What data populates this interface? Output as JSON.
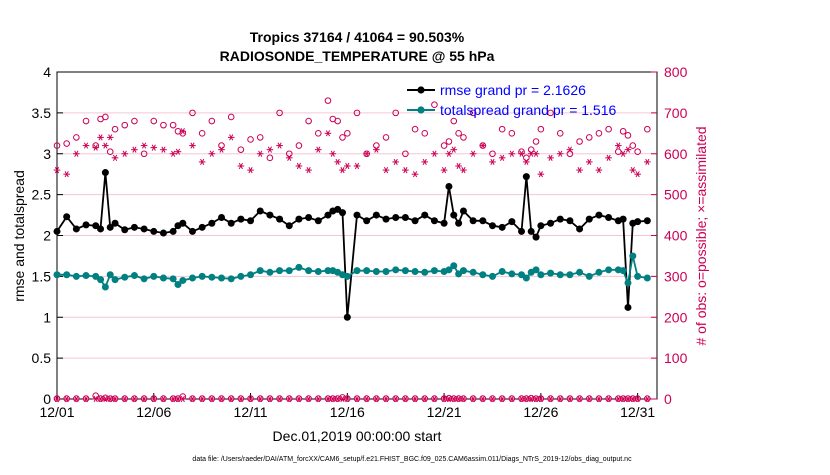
{
  "chart_data": {
    "type": "line",
    "title": [
      "Tropics 37164 / 41064 = 90.503%",
      "RADIOSONDE_TEMPERATURE @ 55 hPa"
    ],
    "xlabel": "Dec.01,2019 00:00:00 start",
    "ylabel": "rmse and totalspread",
    "ylabel_right": "# of obs: o=possible; ×=assimilated",
    "footnote": "data file: /Users/raeder/DAI/ATM_forcXX/CAM6_setup/f.e21.FHIST_BGC.f09_025.CAM6assim.011/Diags_NTrS_2019-12/obs_diag_output.nc",
    "x_ticks": [
      1,
      6,
      11,
      16,
      21,
      26,
      31
    ],
    "x_tick_labels": [
      "12/01",
      "12/06",
      "12/11",
      "12/16",
      "12/21",
      "12/26",
      "12/31"
    ],
    "xlim": [
      1,
      32
    ],
    "y_ticks": [
      0,
      0.5,
      1,
      1.5,
      2,
      2.5,
      3,
      3.5,
      4
    ],
    "y_tick_labels": [
      "0",
      "0.5",
      "1",
      "1.5",
      "2",
      "2.5",
      "3",
      "3.5",
      "4"
    ],
    "ylim": [
      0,
      4
    ],
    "y2_ticks": [
      0,
      100,
      200,
      300,
      400,
      500,
      600,
      700,
      800
    ],
    "y2_tick_labels": [
      "0",
      "100",
      "200",
      "300",
      "400",
      "500",
      "600",
      "700",
      "800"
    ],
    "y2lim": [
      0,
      800
    ],
    "legend": {
      "position": "top-right",
      "entries": [
        "rmse grand pr = 2.1626",
        "totalspread grand pr = 1.516"
      ]
    },
    "colors": {
      "rmse": "#000000",
      "spread": "#008080",
      "obs": "#cc0055",
      "legend_text": "#0000ff"
    },
    "series": [
      {
        "name": "rmse",
        "axis": "left",
        "x": [
          1,
          1.5,
          2,
          2.5,
          3,
          3.25,
          3.5,
          3.75,
          4,
          4.5,
          5,
          5.5,
          6,
          6.5,
          7,
          7.25,
          7.5,
          8,
          8.5,
          9,
          9.5,
          10,
          10.5,
          11,
          11.5,
          12,
          12.5,
          13,
          13.5,
          14,
          14.5,
          15,
          15.25,
          15.5,
          15.75,
          16,
          16.5,
          17,
          17.5,
          18,
          18.5,
          19,
          19.5,
          20,
          20.5,
          21,
          21.25,
          21.5,
          21.75,
          22,
          22.5,
          23,
          23.5,
          24,
          24.5,
          25,
          25.25,
          25.5,
          25.75,
          26,
          26.5,
          27,
          27.5,
          28,
          28.5,
          29,
          29.5,
          30,
          30.25,
          30.5,
          30.75,
          31,
          31.5
        ],
        "values": [
          2.05,
          2.23,
          2.08,
          2.13,
          2.12,
          2.08,
          2.77,
          2.1,
          2.15,
          2.07,
          2.1,
          2.08,
          2.05,
          2.03,
          2.05,
          2.12,
          2.15,
          2.05,
          2.1,
          2.15,
          2.22,
          2.15,
          2.2,
          2.18,
          2.3,
          2.25,
          2.2,
          2.12,
          2.2,
          2.22,
          2.18,
          2.25,
          2.3,
          2.32,
          2.28,
          1.0,
          2.25,
          2.18,
          2.25,
          2.2,
          2.22,
          2.22,
          2.18,
          2.25,
          2.18,
          2.15,
          2.6,
          2.25,
          2.15,
          2.3,
          2.18,
          2.18,
          2.12,
          2.1,
          2.17,
          2.05,
          2.72,
          2.05,
          1.98,
          2.12,
          2.15,
          2.2,
          2.18,
          2.08,
          2.2,
          2.25,
          2.22,
          2.18,
          2.2,
          1.12,
          2.15,
          2.17,
          2.18
        ]
      },
      {
        "name": "totalspread",
        "axis": "left",
        "x": [
          1,
          1.5,
          2,
          2.5,
          3,
          3.25,
          3.5,
          3.75,
          4,
          4.5,
          5,
          5.5,
          6,
          6.5,
          7,
          7.25,
          7.5,
          8,
          8.5,
          9,
          9.5,
          10,
          10.5,
          11,
          11.5,
          12,
          12.5,
          13,
          13.5,
          14,
          14.5,
          15,
          15.25,
          15.5,
          15.75,
          16,
          16.5,
          17,
          17.5,
          18,
          18.5,
          19,
          19.5,
          20,
          20.5,
          21,
          21.25,
          21.5,
          21.75,
          22,
          22.5,
          23,
          23.5,
          24,
          24.5,
          25,
          25.25,
          25.5,
          25.75,
          26,
          26.5,
          27,
          27.5,
          28,
          28.5,
          29,
          29.5,
          30,
          30.25,
          30.5,
          30.75,
          31,
          31.5
        ],
        "values": [
          1.52,
          1.52,
          1.5,
          1.51,
          1.5,
          1.46,
          1.37,
          1.52,
          1.46,
          1.49,
          1.51,
          1.47,
          1.5,
          1.48,
          1.47,
          1.4,
          1.45,
          1.48,
          1.5,
          1.49,
          1.48,
          1.47,
          1.5,
          1.52,
          1.57,
          1.55,
          1.57,
          1.57,
          1.61,
          1.57,
          1.56,
          1.57,
          1.57,
          1.55,
          1.52,
          1.5,
          1.57,
          1.57,
          1.56,
          1.56,
          1.58,
          1.57,
          1.56,
          1.55,
          1.57,
          1.56,
          1.58,
          1.63,
          1.53,
          1.57,
          1.55,
          1.52,
          1.5,
          1.56,
          1.53,
          1.52,
          1.48,
          1.55,
          1.58,
          1.52,
          1.54,
          1.52,
          1.52,
          1.55,
          1.5,
          1.55,
          1.58,
          1.58,
          1.57,
          1.42,
          1.75,
          1.5,
          1.48
        ]
      },
      {
        "name": "possible obs",
        "axis": "right",
        "marker": "circle",
        "x": [
          1,
          1.5,
          2,
          2.5,
          3,
          3.25,
          3.5,
          3.75,
          4,
          4.5,
          5,
          5.5,
          6,
          6.5,
          7,
          7.25,
          7.5,
          8,
          8.5,
          9,
          9.5,
          10,
          10.5,
          11,
          11.5,
          12,
          12.5,
          13,
          13.5,
          14,
          14.5,
          15,
          15.25,
          15.5,
          15.75,
          16,
          16.5,
          17,
          17.5,
          18,
          18.5,
          19,
          19.5,
          20,
          20.5,
          21,
          21.25,
          21.5,
          21.75,
          22,
          22.5,
          23,
          23.5,
          24,
          24.5,
          25,
          25.25,
          25.5,
          25.75,
          26,
          26.5,
          27,
          27.5,
          28,
          28.5,
          29,
          29.5,
          30,
          30.25,
          30.5,
          30.75,
          31,
          31.5
        ],
        "values": [
          620,
          625,
          640,
          680,
          620,
          685,
          690,
          605,
          660,
          670,
          680,
          600,
          680,
          670,
          670,
          655,
          650,
          700,
          650,
          680,
          620,
          690,
          610,
          635,
          640,
          590,
          700,
          600,
          620,
          680,
          650,
          730,
          685,
          680,
          640,
          650,
          700,
          600,
          620,
          640,
          700,
          600,
          660,
          650,
          720,
          620,
          630,
          680,
          650,
          640,
          700,
          620,
          600,
          660,
          650,
          605,
          590,
          610,
          630,
          660,
          700,
          650,
          600,
          630,
          640,
          650,
          660,
          605,
          655,
          645,
          620,
          605,
          660
        ]
      },
      {
        "name": "assimilated obs",
        "axis": "right",
        "marker": "asterisk",
        "x": [
          1,
          1.5,
          2,
          2.5,
          3,
          3.25,
          3.5,
          3.75,
          4,
          4.5,
          5,
          5.5,
          6,
          6.5,
          7,
          7.25,
          7.5,
          8,
          8.5,
          9,
          9.5,
          10,
          10.5,
          11,
          11.5,
          12,
          12.5,
          13,
          13.5,
          14,
          14.5,
          15,
          15.25,
          15.5,
          15.75,
          16,
          16.5,
          17,
          17.5,
          18,
          18.5,
          19,
          19.5,
          20,
          20.5,
          21,
          21.25,
          21.5,
          21.75,
          22,
          22.5,
          23,
          23.5,
          24,
          24.5,
          25,
          25.25,
          25.5,
          25.75,
          26,
          26.5,
          27,
          27.5,
          28,
          28.5,
          29,
          29.5,
          30,
          30.25,
          30.5,
          30.75,
          31,
          31.5
        ],
        "values": [
          560,
          550,
          600,
          620,
          615,
          640,
          620,
          640,
          590,
          600,
          610,
          620,
          615,
          610,
          600,
          605,
          655,
          620,
          580,
          600,
          610,
          640,
          570,
          560,
          600,
          610,
          620,
          590,
          570,
          560,
          610,
          650,
          600,
          580,
          560,
          570,
          570,
          600,
          610,
          560,
          580,
          560,
          550,
          580,
          600,
          560,
          600,
          610,
          570,
          560,
          600,
          620,
          580,
          590,
          600,
          600,
          580,
          600,
          600,
          550,
          590,
          600,
          610,
          560,
          580,
          560,
          590,
          620,
          600,
          610,
          560,
          550,
          580
        ]
      },
      {
        "name": "possible obs (bottom)",
        "axis": "right",
        "marker": "circle",
        "x": [
          1,
          1.5,
          2,
          2.5,
          3,
          3.25,
          3.5,
          3.75,
          4,
          4.5,
          5,
          5.5,
          6,
          6.5,
          7,
          7.25,
          7.5,
          8,
          8.5,
          9,
          9.5,
          10,
          10.5,
          11,
          11.5,
          12,
          12.5,
          13,
          13.5,
          14,
          14.5,
          15,
          15.25,
          15.5,
          15.75,
          16,
          16.5,
          17,
          17.5,
          18,
          18.5,
          19,
          19.5,
          20,
          20.5,
          21,
          21.25,
          21.5,
          21.75,
          22,
          22.5,
          23,
          23.5,
          24,
          24.5,
          25,
          25.25,
          25.5,
          25.75,
          26,
          26.5,
          27,
          27.5,
          28,
          28.5,
          29,
          29.5,
          30,
          30.25,
          30.5,
          30.75,
          31,
          31.5
        ],
        "values": [
          1,
          1,
          1,
          1,
          8,
          1,
          3,
          1,
          1,
          1,
          1,
          1,
          1,
          1,
          1,
          1,
          6,
          1,
          1,
          1,
          1,
          1,
          1,
          1,
          1,
          1,
          1,
          1,
          1,
          1,
          1,
          1,
          1,
          1,
          4,
          1,
          1,
          1,
          1,
          1,
          1,
          1,
          1,
          1,
          1,
          1,
          2,
          1,
          1,
          1,
          1,
          1,
          1,
          1,
          1,
          1,
          1,
          2,
          1,
          1,
          1,
          1,
          1,
          1,
          1,
          1,
          1,
          1,
          1,
          1,
          1,
          1,
          1
        ]
      },
      {
        "name": "assimilated obs (bottom)",
        "axis": "right",
        "marker": "asterisk",
        "x": [
          1,
          1.5,
          2,
          2.5,
          3,
          3.25,
          3.5,
          3.75,
          4,
          4.5,
          5,
          5.5,
          6,
          6.5,
          7,
          7.25,
          7.5,
          8,
          8.5,
          9,
          9.5,
          10,
          10.5,
          11,
          11.5,
          12,
          12.5,
          13,
          13.5,
          14,
          14.5,
          15,
          15.25,
          15.5,
          15.75,
          16,
          16.5,
          17,
          17.5,
          18,
          18.5,
          19,
          19.5,
          20,
          20.5,
          21,
          21.25,
          21.5,
          21.75,
          22,
          22.5,
          23,
          23.5,
          24,
          24.5,
          25,
          25.25,
          25.5,
          25.75,
          26,
          26.5,
          27,
          27.5,
          28,
          28.5,
          29,
          29.5,
          30,
          30.25,
          30.5,
          30.75,
          31,
          31.5
        ],
        "values": [
          0,
          0,
          0,
          0,
          0,
          0,
          0,
          0,
          0,
          0,
          0,
          0,
          0,
          0,
          0,
          0,
          0,
          0,
          0,
          0,
          0,
          0,
          0,
          0,
          0,
          0,
          0,
          0,
          0,
          0,
          0,
          0,
          0,
          0,
          0,
          0,
          0,
          0,
          0,
          0,
          0,
          0,
          0,
          0,
          0,
          0,
          0,
          0,
          0,
          0,
          0,
          0,
          0,
          0,
          0,
          0,
          0,
          0,
          0,
          0,
          0,
          0,
          0,
          0,
          0,
          0,
          0,
          0,
          0,
          0,
          0,
          0,
          0
        ]
      }
    ]
  }
}
